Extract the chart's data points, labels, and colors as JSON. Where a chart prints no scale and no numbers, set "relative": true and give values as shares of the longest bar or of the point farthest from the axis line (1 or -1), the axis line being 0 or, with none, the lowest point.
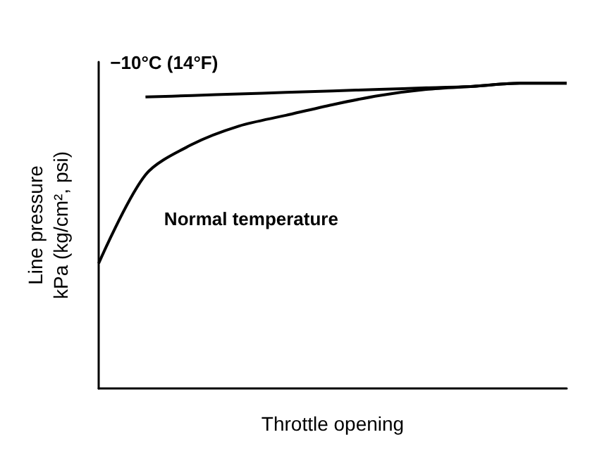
{
  "chart_data": {
    "type": "line",
    "relative": true,
    "xlabel": "Throttle opening",
    "ylabel": "Line pressure\nkPa (kg/cm², psi)",
    "categories": [
      null,
      null,
      null,
      null,
      null,
      null,
      null,
      null,
      null,
      null,
      null
    ],
    "series": [
      {
        "name": "−10°C (14°F)",
        "color": "#000000",
        "values": [
          null,
          0.955,
          0.96,
          0.965,
          0.97,
          0.975,
          0.98,
          0.985,
          0.99,
          1.0,
          1.0
        ]
      },
      {
        "name": "Normal temperature",
        "color": "#000000",
        "values": [
          0.41,
          0.7,
          0.8,
          0.86,
          0.895,
          0.93,
          0.96,
          0.98,
          0.99,
          1.0,
          1.0
        ]
      }
    ],
    "grid": false,
    "legend": false,
    "marker": "none",
    "line_style": "solid"
  }
}
